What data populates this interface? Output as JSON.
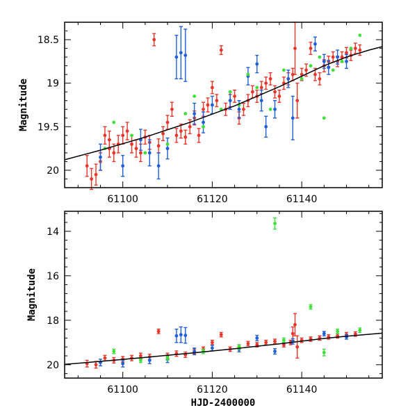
{
  "chart_data": [
    {
      "type": "scatter",
      "panel": "top",
      "xlabel": "",
      "ylabel": "Magnitude",
      "xlim": [
        61087,
        61158
      ],
      "ylim": [
        20.2,
        18.3
      ],
      "y_inverted": true,
      "xticks": [
        61100,
        61120,
        61140
      ],
      "xtick_labels": [
        "61100",
        "61120",
        "61140"
      ],
      "yticks": [
        18.5,
        19,
        19.5,
        20
      ],
      "ytick_labels": [
        "18.5",
        "19",
        "19.5",
        "20"
      ],
      "grid": false,
      "fit_curve": {
        "x": [
          61087,
          61095,
          61105,
          61115,
          61125,
          61135,
          61140,
          61145,
          61150,
          61155,
          61158
        ],
        "y": [
          19.88,
          19.77,
          19.62,
          19.45,
          19.26,
          19.04,
          18.92,
          18.8,
          18.7,
          18.62,
          18.58
        ]
      },
      "series": [
        {
          "name": "red",
          "color": "#e8362a",
          "x": [
            61092,
            61093,
            61094,
            61095,
            61096,
            61097,
            61097,
            61098,
            61099,
            61100,
            61101,
            61102,
            61103,
            61104,
            61105,
            61106,
            61107,
            61108,
            61109,
            61110,
            61111,
            61112,
            61113,
            61114,
            61115,
            61116,
            61117,
            61118,
            61119,
            61120,
            61121,
            61122,
            61123,
            61124,
            61125,
            61126,
            61127,
            61128,
            61129,
            61130,
            61131,
            61132,
            61133,
            61134,
            61135,
            61136,
            61137,
            61138,
            61138.5,
            61139,
            61140,
            61141,
            61142,
            61143,
            61144,
            61145,
            61146,
            61147,
            61148,
            61149,
            61150,
            61151,
            61152,
            61153
          ],
          "y": [
            19.95,
            20.1,
            20.05,
            19.9,
            19.6,
            19.65,
            19.75,
            19.8,
            19.7,
            19.6,
            19.55,
            19.7,
            19.75,
            19.8,
            19.62,
            19.68,
            18.5,
            19.72,
            19.58,
            19.45,
            19.3,
            19.6,
            19.55,
            19.62,
            19.5,
            19.4,
            19.6,
            19.3,
            19.25,
            19.05,
            19.2,
            18.62,
            19.3,
            19.2,
            19.15,
            19.4,
            19.3,
            19.2,
            19.1,
            19.15,
            19.05,
            19.0,
            18.95,
            19.1,
            19.15,
            19.0,
            18.95,
            18.9,
            18.6,
            19.2,
            18.9,
            18.85,
            18.6,
            18.9,
            18.95,
            18.8,
            18.75,
            18.7,
            18.75,
            18.7,
            18.65,
            18.68,
            18.6,
            18.62
          ],
          "yerr": [
            0.12,
            0.12,
            0.12,
            0.1,
            0.1,
            0.1,
            0.1,
            0.1,
            0.1,
            0.1,
            0.1,
            0.1,
            0.1,
            0.1,
            0.08,
            0.08,
            0.07,
            0.08,
            0.08,
            0.08,
            0.08,
            0.08,
            0.08,
            0.08,
            0.08,
            0.08,
            0.08,
            0.08,
            0.08,
            0.07,
            0.07,
            0.05,
            0.07,
            0.07,
            0.07,
            0.07,
            0.07,
            0.07,
            0.07,
            0.07,
            0.07,
            0.07,
            0.07,
            0.07,
            0.07,
            0.07,
            0.07,
            0.07,
            0.3,
            0.2,
            0.07,
            0.07,
            0.07,
            0.07,
            0.07,
            0.07,
            0.06,
            0.06,
            0.06,
            0.06,
            0.06,
            0.06,
            0.06,
            0.06
          ]
        },
        {
          "name": "blue",
          "color": "#1f5fd6",
          "x": [
            61095,
            61100,
            61104,
            61106,
            61108,
            61110,
            61112,
            61113,
            61114,
            61116,
            61118,
            61120,
            61124,
            61126,
            61128,
            61130,
            61131,
            61132,
            61134,
            61137,
            61138,
            61143,
            61145,
            61146,
            61148,
            61150
          ],
          "y": [
            19.85,
            19.95,
            19.65,
            19.8,
            19.95,
            19.75,
            18.7,
            18.65,
            18.68,
            19.35,
            19.45,
            19.25,
            19.2,
            19.3,
            18.92,
            18.78,
            19.2,
            19.5,
            19.3,
            18.95,
            19.4,
            18.55,
            18.75,
            18.82,
            18.7,
            18.75
          ],
          "yerr": [
            0.15,
            0.12,
            0.12,
            0.15,
            0.15,
            0.12,
            0.25,
            0.3,
            0.3,
            0.12,
            0.12,
            0.1,
            0.1,
            0.1,
            0.1,
            0.1,
            0.12,
            0.12,
            0.1,
            0.1,
            0.25,
            0.08,
            0.08,
            0.08,
            0.08,
            0.08
          ]
        },
        {
          "name": "green",
          "color": "#3fe03a",
          "x": [
            61096,
            61098,
            61102,
            61105,
            61110,
            61114,
            61116,
            61118,
            61122,
            61124,
            61126,
            61128,
            61130,
            61133,
            61136,
            61140,
            61142,
            61144,
            61145,
            61147,
            61149,
            61151,
            61153
          ],
          "y": [
            19.75,
            19.45,
            19.6,
            19.8,
            19.7,
            19.35,
            19.15,
            19.5,
            19.3,
            19.1,
            19.25,
            18.9,
            19.05,
            19.3,
            18.85,
            18.95,
            18.8,
            18.7,
            19.4,
            18.85,
            18.75,
            18.6,
            18.45
          ]
        }
      ]
    },
    {
      "type": "scatter",
      "panel": "bottom",
      "xlabel": "HJD-2400000",
      "ylabel": "Magnitude",
      "xlim": [
        61087,
        61158
      ],
      "ylim": [
        20.6,
        13.1
      ],
      "y_inverted": true,
      "xticks": [
        61100,
        61120,
        61140
      ],
      "xtick_labels": [
        "61100",
        "61120",
        "61140"
      ],
      "yticks": [
        14,
        16,
        18,
        20
      ],
      "ytick_labels": [
        "14",
        "16",
        "18",
        "20"
      ],
      "grid": false,
      "fit_curve": {
        "x": [
          61087,
          61095,
          61105,
          61115,
          61125,
          61135,
          61140,
          61145,
          61150,
          61155,
          61158
        ],
        "y": [
          19.98,
          19.85,
          19.67,
          19.48,
          19.28,
          19.06,
          18.94,
          18.82,
          18.72,
          18.63,
          18.58
        ]
      },
      "series": [
        {
          "name": "red",
          "color": "#e8362a",
          "x": [
            61092,
            61094,
            61096,
            61098,
            61100,
            61102,
            61104,
            61106,
            61108,
            61110,
            61112,
            61114,
            61116,
            61118,
            61120,
            61122,
            61124,
            61126,
            61128,
            61130,
            61132,
            61134,
            61136,
            61137.5,
            61138,
            61138.5,
            61139,
            61140,
            61142,
            61144,
            61146,
            61148,
            61150,
            61152
          ],
          "y": [
            19.95,
            20.0,
            19.7,
            19.8,
            19.75,
            19.7,
            19.6,
            19.65,
            18.5,
            19.6,
            19.5,
            19.55,
            19.4,
            19.3,
            19.0,
            18.65,
            19.3,
            19.2,
            19.05,
            19.1,
            19.0,
            18.95,
            19.1,
            19.0,
            18.6,
            18.2,
            19.2,
            18.9,
            18.85,
            18.8,
            18.75,
            18.7,
            18.65,
            18.62
          ],
          "yerr": [
            0.15,
            0.15,
            0.12,
            0.12,
            0.12,
            0.12,
            0.12,
            0.12,
            0.1,
            0.12,
            0.12,
            0.12,
            0.1,
            0.1,
            0.1,
            0.1,
            0.1,
            0.1,
            0.1,
            0.1,
            0.1,
            0.1,
            0.1,
            0.1,
            0.3,
            0.5,
            0.5,
            0.1,
            0.1,
            0.1,
            0.1,
            0.1,
            0.1,
            0.1
          ]
        },
        {
          "name": "blue",
          "color": "#1f5fd6",
          "x": [
            61095,
            61100,
            61106,
            61110,
            61112,
            61113,
            61114,
            61116,
            61120,
            61126,
            61130,
            61134,
            61138,
            61145,
            61150
          ],
          "y": [
            19.9,
            19.95,
            19.8,
            19.75,
            18.7,
            18.65,
            18.68,
            19.4,
            19.25,
            19.3,
            18.8,
            19.4,
            18.95,
            18.6,
            18.75
          ],
          "yerr": [
            0.15,
            0.15,
            0.15,
            0.15,
            0.3,
            0.35,
            0.35,
            0.15,
            0.12,
            0.12,
            0.12,
            0.12,
            0.12,
            0.1,
            0.1
          ]
        },
        {
          "name": "green",
          "color": "#3fe03a",
          "x": [
            61098,
            61104,
            61110,
            61118,
            61126,
            61134,
            61136,
            61142,
            61145,
            61148,
            61153
          ],
          "y": [
            19.4,
            19.8,
            19.7,
            19.4,
            19.2,
            13.65,
            18.9,
            17.4,
            19.45,
            18.5,
            18.45
          ],
          "yerr": [
            0.1,
            0.1,
            0.1,
            0.1,
            0.1,
            0.25,
            0.1,
            0.1,
            0.15,
            0.1,
            0.1
          ]
        }
      ]
    }
  ]
}
